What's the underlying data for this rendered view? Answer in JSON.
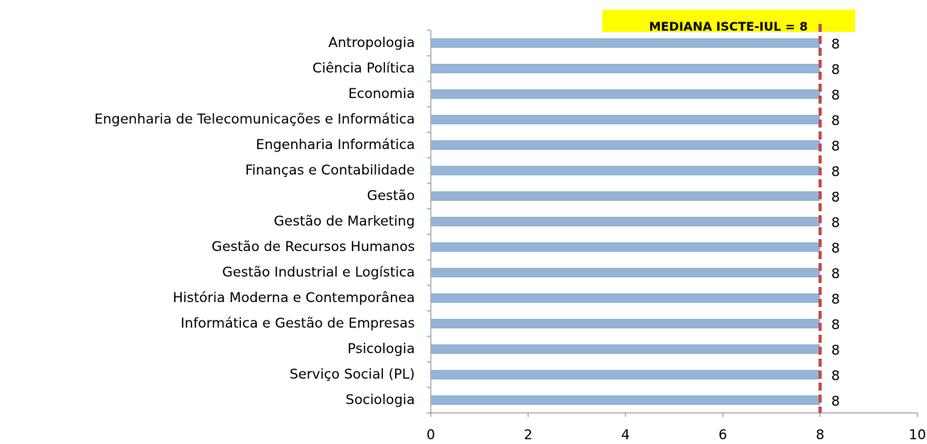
{
  "chart_data": {
    "type": "bar",
    "orientation": "horizontal",
    "categories": [
      "Antropologia",
      "Ciência Política",
      "Economia",
      "Engenharia de Telecomunicações e Informática",
      "Engenharia Informática",
      "Finanças e Contabilidade",
      "Gestão",
      "Gestão de Marketing",
      "Gestão de Recursos Humanos",
      "Gestão Industrial e Logística",
      "História Moderna e Contemporânea",
      "Informática e Gestão de Empresas",
      "Psicologia",
      "Serviço Social (PL)",
      "Sociologia"
    ],
    "values": [
      8,
      8,
      8,
      8,
      8,
      8,
      8,
      8,
      8,
      8,
      8,
      8,
      8,
      8,
      8
    ],
    "color": "#95b3d7",
    "xlim": [
      0,
      10
    ],
    "xticks": [
      0,
      2,
      4,
      6,
      8,
      10
    ],
    "annotation": {
      "text": "MEDIANA ISCTE-IUL = 8",
      "value": 8,
      "color": "#c0504d",
      "box_color": "#ffff00"
    }
  }
}
